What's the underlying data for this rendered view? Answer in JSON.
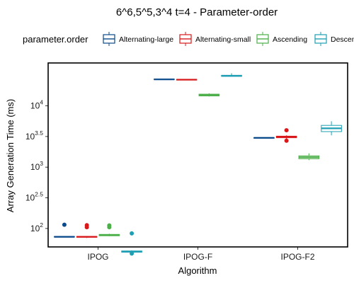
{
  "chart_data": {
    "type": "box",
    "title": "6^6,5^5,3^4 t=4 - Parameter-order",
    "xlabel": "Algorithm",
    "ylabel": "Array Generation Time (ms)",
    "y_scale": "log10",
    "ylim": [
      50,
      50000
    ],
    "y_ticks": [
      {
        "value": 100,
        "base": "10",
        "exp": "2"
      },
      {
        "value": 316.23,
        "base": "10",
        "exp": "2.5"
      },
      {
        "value": 1000,
        "base": "10",
        "exp": "3"
      },
      {
        "value": 3162.28,
        "base": "10",
        "exp": "3.5"
      },
      {
        "value": 10000,
        "base": "10",
        "exp": "4"
      }
    ],
    "categories": [
      "IPOG",
      "IPOG-F",
      "IPOG-F2"
    ],
    "legend": {
      "title": "parameter.order",
      "position": "top"
    },
    "series": [
      {
        "name": "Alternating-large",
        "color": "#0b4a8b",
        "boxes": [
          {
            "q1": 73,
            "median": 73,
            "q3": 74,
            "whisker_low": 73,
            "whisker_high": 74,
            "outliers": [
              115
            ]
          },
          {
            "q1": 26800,
            "median": 27000,
            "q3": 27300,
            "whisker_low": 26800,
            "whisker_high": 27300,
            "outliers": []
          },
          {
            "q1": 2950,
            "median": 3000,
            "q3": 3040,
            "whisker_low": 2950,
            "whisker_high": 3040,
            "outliers": []
          }
        ]
      },
      {
        "name": "Alternating-small",
        "color": "#d7191c",
        "boxes": [
          {
            "q1": 72,
            "median": 73,
            "q3": 74,
            "whisker_low": 70,
            "whisker_high": 75,
            "outliers": [
              113,
              105
            ]
          },
          {
            "q1": 26400,
            "median": 26700,
            "q3": 27000,
            "whisker_low": 26400,
            "whisker_high": 27000,
            "outliers": []
          },
          {
            "q1": 3020,
            "median": 3100,
            "q3": 3200,
            "whisker_low": 2900,
            "whisker_high": 3300,
            "outliers": [
              4000,
              2700
            ]
          }
        ]
      },
      {
        "name": "Ascending",
        "color": "#4daf4a",
        "boxes": [
          {
            "q1": 76,
            "median": 78,
            "q3": 80,
            "whisker_low": 75,
            "whisker_high": 82,
            "outliers": [
              112,
              105
            ]
          },
          {
            "q1": 14500,
            "median": 15000,
            "q3": 15500,
            "whisker_low": 14200,
            "whisker_high": 16000,
            "outliers": []
          },
          {
            "q1": 1370,
            "median": 1450,
            "q3": 1530,
            "whisker_low": 1300,
            "whisker_high": 1680,
            "outliers": []
          }
        ]
      },
      {
        "name": "Descending",
        "color": "#1f9fb4",
        "boxes": [
          {
            "q1": 41,
            "median": 42,
            "q3": 43,
            "whisker_low": 38,
            "whisker_high": 44,
            "outliers": [
              83,
              39
            ]
          },
          {
            "q1": 30300,
            "median": 30800,
            "q3": 31500,
            "whisker_low": 30000,
            "whisker_high": 34000,
            "outliers": []
          },
          {
            "q1": 3800,
            "median": 4300,
            "q3": 4800,
            "whisker_low": 3300,
            "whisker_high": 5600,
            "outliers": []
          }
        ]
      }
    ]
  }
}
